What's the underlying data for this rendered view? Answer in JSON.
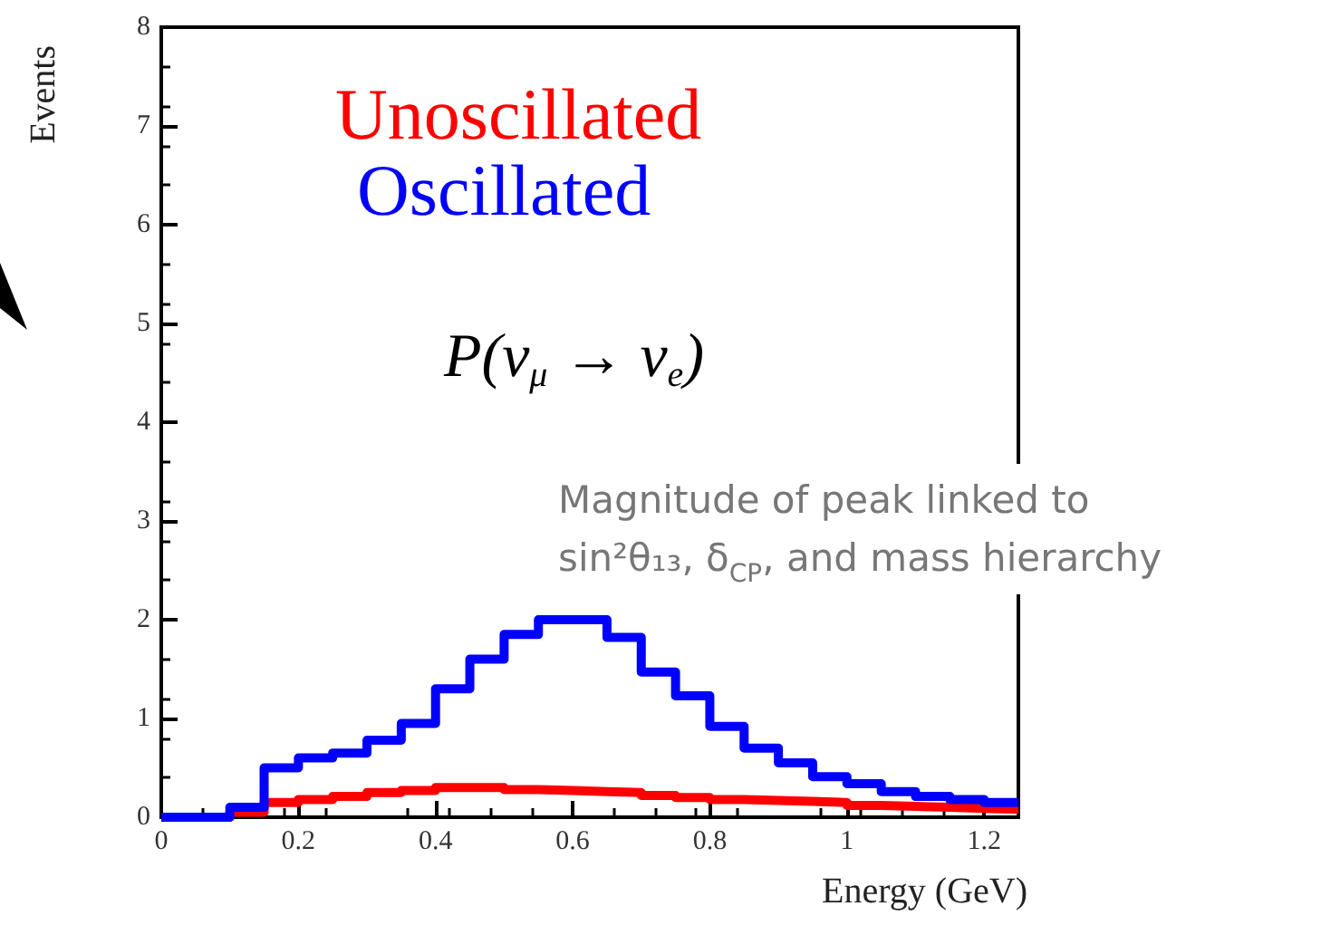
{
  "chart_data": {
    "type": "histogram",
    "xlabel": "Energy (GeV)",
    "ylabel": "Events",
    "bins": [
      0,
      0.05,
      0.1,
      0.15,
      0.2,
      0.25,
      0.3,
      0.35,
      0.4,
      0.45,
      0.5,
      0.55,
      0.6,
      0.65,
      0.7,
      0.75,
      0.8,
      0.85,
      0.9,
      0.95,
      1.0,
      1.05,
      1.1,
      1.15,
      1.2,
      1.25
    ],
    "series": [
      {
        "name": "Unoscillated",
        "color": "#ff0000",
        "values": [
          0,
          0,
          0.05,
          0.15,
          0.18,
          0.21,
          0.25,
          0.27,
          0.3,
          0.3,
          0.28,
          0.27,
          0.26,
          0.25,
          0.22,
          0.2,
          0.18,
          0.17,
          0.16,
          0.15,
          0.12,
          0.11,
          0.1,
          0.09,
          0.08
        ]
      },
      {
        "name": "Oscillated",
        "color": "#0000ff",
        "values": [
          0,
          0,
          0.1,
          0.5,
          0.6,
          0.65,
          0.78,
          0.95,
          1.3,
          1.6,
          1.85,
          2.0,
          2.0,
          1.82,
          1.47,
          1.23,
          0.92,
          0.7,
          0.55,
          0.41,
          0.34,
          0.26,
          0.21,
          0.18,
          0.15
        ]
      }
    ],
    "xlim": [
      0,
      1.25
    ],
    "xticks": [
      0,
      0.2,
      0.4,
      0.6,
      0.8,
      1,
      1.2
    ],
    "ylim": [
      0,
      8
    ],
    "yticks": [
      0,
      1,
      2,
      3,
      4,
      5,
      6,
      7,
      8
    ],
    "grid": false,
    "legend": "top left",
    "annotations": [
      "P(ν$_{μ}$ → ν$_{e}$)",
      "Magnitude of peak linked to\nsin²θ₁₃, δ$_{CP}$, and mass hierarchy"
    ]
  }
}
